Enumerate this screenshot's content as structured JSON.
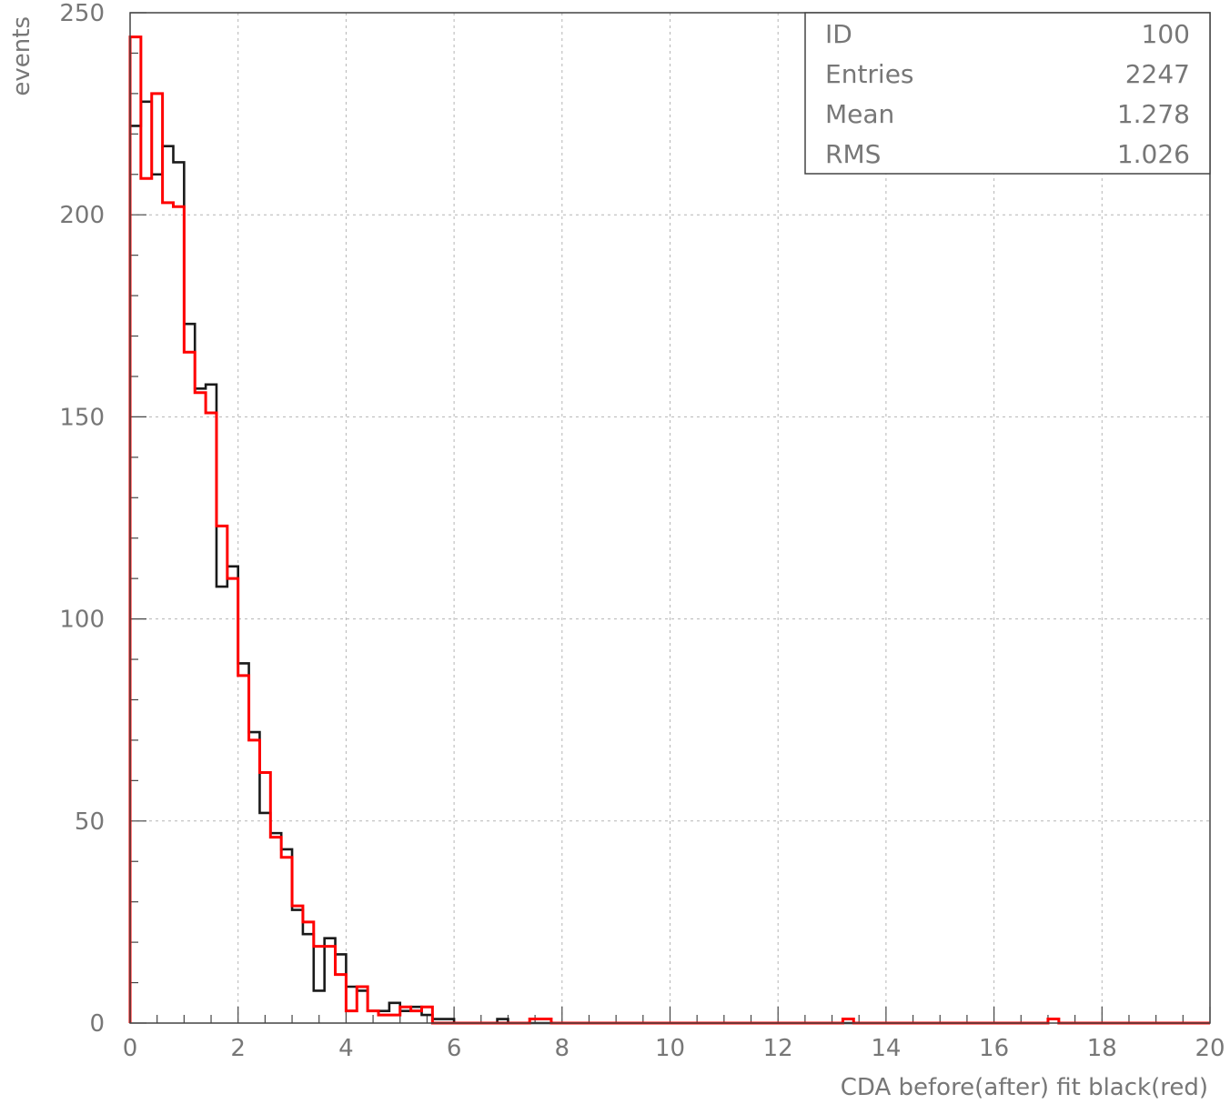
{
  "chart_data": {
    "type": "histogram",
    "xlabel": "CDA before(after) fit black(red)",
    "ylabel": "events",
    "xlim": [
      0,
      20
    ],
    "ylim": [
      0,
      250
    ],
    "x_ticks": [
      0,
      2,
      4,
      6,
      8,
      10,
      12,
      14,
      16,
      18,
      20
    ],
    "y_ticks": [
      0,
      50,
      100,
      150,
      200,
      250
    ],
    "grid": true,
    "bin_width": 0.2,
    "stats_box": {
      "position": "top-right",
      "rows": [
        {
          "label": "ID",
          "value": "100"
        },
        {
          "label": "Entries",
          "value": "2247"
        },
        {
          "label": "Mean",
          "value": "1.278"
        },
        {
          "label": "RMS",
          "value": "1.026"
        }
      ]
    },
    "series": [
      {
        "color": "#1a1a1a",
        "values": [
          222,
          228,
          210,
          217,
          213,
          173,
          157,
          158,
          108,
          113,
          89,
          72,
          52,
          47,
          43,
          28,
          22,
          8,
          21,
          17,
          9,
          8,
          3,
          3,
          5,
          3,
          4,
          2,
          1,
          1,
          0,
          0,
          0,
          0,
          1,
          0,
          0,
          0,
          0,
          0,
          0,
          0,
          0,
          0,
          0,
          0,
          0,
          0,
          0,
          0,
          0,
          0,
          0,
          0,
          0,
          0,
          0,
          0,
          0,
          0,
          0,
          0,
          0,
          0,
          0,
          0,
          0,
          0,
          0,
          0,
          0,
          0,
          0,
          0,
          0,
          0,
          0,
          0,
          0,
          0,
          0,
          0,
          0,
          0,
          0,
          1,
          0,
          0,
          0,
          0,
          0,
          0,
          0,
          0,
          0,
          0,
          0,
          0,
          0,
          0
        ]
      },
      {
        "color": "#ff0000",
        "values": [
          244,
          209,
          230,
          203,
          202,
          166,
          156,
          151,
          123,
          110,
          86,
          70,
          62,
          46,
          41,
          29,
          25,
          19,
          19,
          12,
          3,
          9,
          3,
          2,
          2,
          4,
          3,
          4,
          0,
          0,
          0,
          0,
          0,
          0,
          0,
          0,
          0,
          1,
          1,
          0,
          0,
          0,
          0,
          0,
          0,
          0,
          0,
          0,
          0,
          0,
          0,
          0,
          0,
          0,
          0,
          0,
          0,
          0,
          0,
          0,
          0,
          0,
          0,
          0,
          0,
          0,
          1,
          0,
          0,
          0,
          0,
          0,
          0,
          0,
          0,
          0,
          0,
          0,
          0,
          0,
          0,
          0,
          0,
          0,
          0,
          1,
          0,
          0,
          0,
          0,
          0,
          0,
          0,
          0,
          0,
          0,
          0,
          0,
          0,
          0
        ]
      }
    ]
  }
}
